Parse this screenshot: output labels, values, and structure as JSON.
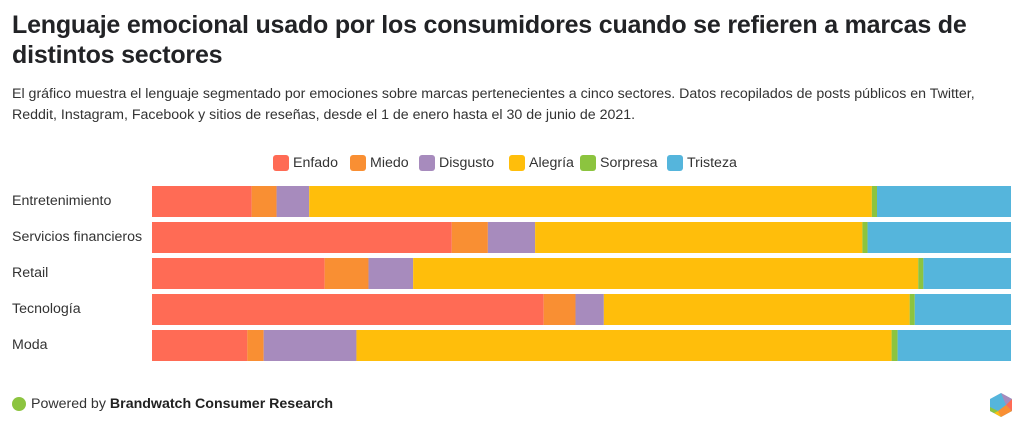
{
  "header": {
    "title": "Lenguaje emocional usado por los consumidores cuando se refieren a marcas de distintos sectores",
    "subtitle": "El gráfico muestra el lenguaje segmentado por emociones sobre marcas pertenecientes a cinco sectores. Datos recopilados de posts públicos en Twitter, Reddit, Instagram, Facebook y sitios de reseñas, desde el 1 de enero hasta el 30 de junio de 2021."
  },
  "footer": {
    "prefix": "Powered by",
    "brand": "Brandwatch Consumer Research",
    "dot_color": "#8cc43f",
    "logo_icon": "hexagon-logo-icon"
  },
  "chart_data": {
    "type": "bar",
    "orientation": "horizontal",
    "stacked": true,
    "normalized": true,
    "title": "Lenguaje emocional usado por los consumidores cuando se refieren a marcas de distintos sectores",
    "xlabel": "",
    "ylabel": "",
    "xlim": [
      0,
      100
    ],
    "unit": "%",
    "grid": false,
    "legend_position": "top-center",
    "categories": [
      "Entretenimiento",
      "Servicios financieros",
      "Retail",
      "Tecnología",
      "Moda"
    ],
    "series": [
      {
        "name": "Enfado",
        "color": "#ff6b55",
        "values": [
          11.6,
          34.9,
          20.1,
          45.6,
          11.1
        ]
      },
      {
        "name": "Miedo",
        "color": "#f98f33",
        "values": [
          2.9,
          4.2,
          5.1,
          3.7,
          1.9
        ]
      },
      {
        "name": "Disgusto",
        "color": "#a78bbd",
        "values": [
          3.8,
          5.5,
          5.2,
          3.3,
          10.8
        ]
      },
      {
        "name": "Alegría",
        "color": "#ffbe0b",
        "values": [
          65.5,
          38.1,
          58.8,
          35.6,
          62.3
        ]
      },
      {
        "name": "Sorpresa",
        "color": "#8cc43f",
        "values": [
          0.6,
          0.6,
          0.6,
          0.6,
          0.7
        ]
      },
      {
        "name": "Tristeza",
        "color": "#55b5dc",
        "values": [
          15.6,
          16.7,
          10.2,
          11.2,
          13.2
        ]
      }
    ]
  }
}
